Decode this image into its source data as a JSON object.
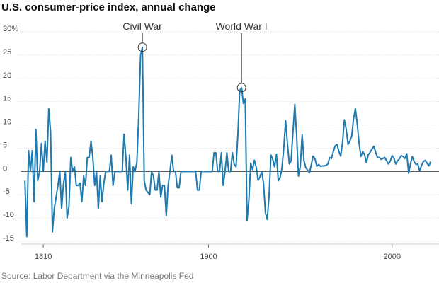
{
  "chart_data": {
    "type": "line",
    "title": "U.S. consumer-price index, annual change",
    "source": "Source: Labor Department via the Minneapolis Fed",
    "x": [
      1800,
      1801,
      1802,
      1803,
      1804,
      1805,
      1806,
      1807,
      1808,
      1809,
      1810,
      1811,
      1812,
      1813,
      1814,
      1815,
      1816,
      1817,
      1818,
      1819,
      1820,
      1821,
      1822,
      1823,
      1824,
      1825,
      1826,
      1827,
      1828,
      1829,
      1830,
      1831,
      1832,
      1833,
      1834,
      1835,
      1836,
      1837,
      1838,
      1839,
      1840,
      1841,
      1842,
      1843,
      1844,
      1845,
      1846,
      1847,
      1848,
      1849,
      1850,
      1851,
      1852,
      1853,
      1854,
      1855,
      1856,
      1857,
      1858,
      1859,
      1860,
      1861,
      1862,
      1863,
      1864,
      1865,
      1866,
      1867,
      1868,
      1869,
      1870,
      1871,
      1872,
      1873,
      1874,
      1875,
      1876,
      1877,
      1878,
      1879,
      1880,
      1881,
      1882,
      1883,
      1884,
      1885,
      1886,
      1887,
      1888,
      1889,
      1890,
      1891,
      1892,
      1893,
      1894,
      1895,
      1896,
      1897,
      1898,
      1899,
      1900,
      1901,
      1902,
      1903,
      1904,
      1905,
      1906,
      1907,
      1908,
      1909,
      1910,
      1911,
      1912,
      1913,
      1914,
      1915,
      1916,
      1917,
      1918,
      1919,
      1920,
      1921,
      1922,
      1923,
      1924,
      1925,
      1926,
      1927,
      1928,
      1929,
      1930,
      1931,
      1932,
      1933,
      1934,
      1935,
      1936,
      1937,
      1938,
      1939,
      1940,
      1941,
      1942,
      1943,
      1944,
      1945,
      1946,
      1947,
      1948,
      1949,
      1950,
      1951,
      1952,
      1953,
      1954,
      1955,
      1956,
      1957,
      1958,
      1959,
      1960,
      1961,
      1962,
      1963,
      1964,
      1965,
      1966,
      1967,
      1968,
      1969,
      1970,
      1971,
      1972,
      1973,
      1974,
      1975,
      1976,
      1977,
      1978,
      1979,
      1980,
      1981,
      1982,
      1983,
      1984,
      1985,
      1986,
      1987,
      1988,
      1989,
      1990,
      1991,
      1992,
      1993,
      1994,
      1995,
      1996,
      1997,
      1998,
      1999,
      2000,
      2001,
      2002,
      2003,
      2004,
      2005,
      2006,
      2007,
      2008,
      2009,
      2010,
      2011,
      2012,
      2013,
      2014,
      2015,
      2016,
      2017,
      2018,
      2019,
      2020,
      2021
    ],
    "series": [
      {
        "name": "CPI annual change",
        "color": "#1f7ab0",
        "values": [
          -2,
          -14,
          4.5,
          0,
          4.5,
          -6.5,
          9,
          -2,
          0,
          6,
          0,
          6.5,
          2,
          13.5,
          8.5,
          -13,
          -8,
          -5.5,
          -3,
          0,
          -8,
          -2.7,
          0,
          -10,
          -7.5,
          3,
          0,
          1,
          -3,
          -3,
          -2.5,
          -6.5,
          -1,
          -3,
          3,
          3,
          6.5,
          3,
          -3,
          0,
          -8,
          -1,
          -6.5,
          -2.5,
          0,
          0,
          0,
          3.5,
          -3,
          0,
          0,
          0,
          0,
          0,
          8,
          3,
          -4,
          3.5,
          -7,
          1,
          0,
          2,
          12,
          25,
          26.7,
          -2,
          -4,
          -4.5,
          -5,
          0,
          -1,
          -4,
          -4,
          0,
          -5.5,
          -3,
          -3,
          -9.5,
          -3,
          0,
          3.5,
          0,
          0,
          -3.5,
          -3.5,
          0,
          0,
          0,
          0,
          0,
          0,
          0,
          0,
          0,
          -4,
          -4,
          0,
          0,
          0,
          0,
          0,
          0,
          0,
          4,
          4,
          0,
          0,
          4,
          -3,
          0,
          4,
          0,
          0,
          4,
          1.5,
          1,
          7.9,
          17.4,
          18,
          14.6,
          15.6,
          -10.5,
          -6.1,
          1.8,
          0.4,
          2.4,
          0.9,
          -1.9,
          -1.2,
          0,
          -2.7,
          -8.9,
          -10.3,
          -5.2,
          3.5,
          2.6,
          1,
          3.7,
          -2,
          -1.3,
          0.7,
          5.1,
          10.9,
          6,
          1.6,
          2.3,
          8.5,
          14.4,
          7.7,
          -1,
          1.1,
          7.9,
          2.3,
          0.8,
          0.3,
          -0.3,
          1.5,
          3.3,
          2.7,
          1.1,
          1.5,
          1.1,
          1.2,
          1.2,
          1.3,
          1.6,
          3,
          2.8,
          4.3,
          5.5,
          5.8,
          4.3,
          3.3,
          6.2,
          11.1,
          9.1,
          5.8,
          6.5,
          7.6,
          11.3,
          13.5,
          10.3,
          6.1,
          3.2,
          4.3,
          3.6,
          1.9,
          3.6,
          4.1,
          4.8,
          5.4,
          4.2,
          3,
          3,
          2.6,
          2.8,
          3,
          2.3,
          1.6,
          2.2,
          3.4,
          2.8,
          1.6,
          2.3,
          2.7,
          3.4,
          3.2,
          2.8,
          3.8,
          -0.4,
          1.6,
          3.2,
          2.1,
          1.5,
          1.6,
          0.1,
          1.3,
          2.1,
          2.4,
          1.8,
          1.2,
          2.1
        ]
      }
    ],
    "annotations": [
      {
        "text": "Civil War",
        "x": 1864
      },
      {
        "text": "World War I",
        "x": 1918
      }
    ],
    "xlim": [
      1798,
      2024
    ],
    "xticks": [
      1810,
      1900,
      2000
    ],
    "ylim": [
      -15,
      30
    ],
    "yticks": [
      {
        "value": 30,
        "label": "30%"
      },
      25,
      20,
      15,
      10,
      5,
      0,
      -5,
      -10,
      -15
    ],
    "grid": true
  }
}
